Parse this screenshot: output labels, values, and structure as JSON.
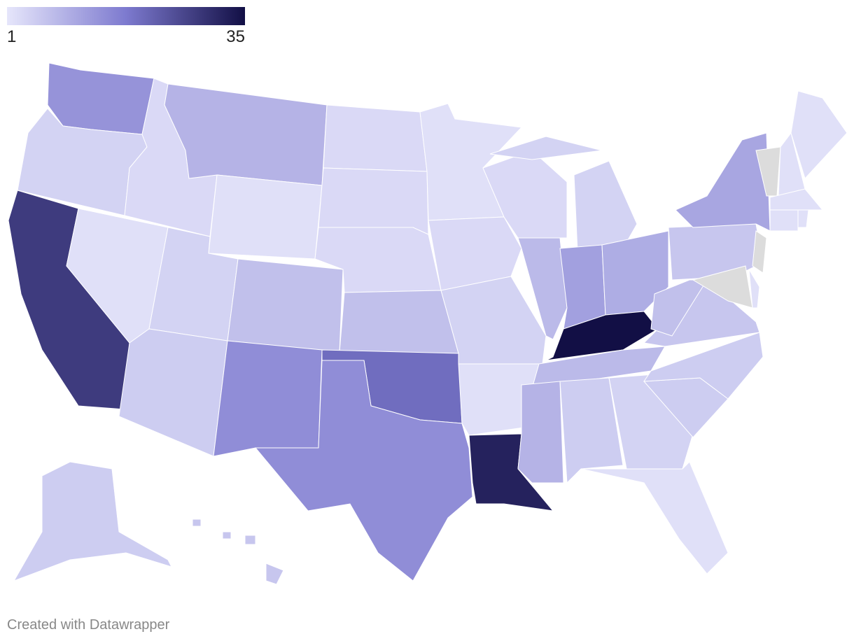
{
  "chart_data": {
    "type": "choropleth",
    "legend": {
      "ticks": [
        1,
        35
      ],
      "colors": [
        "#e6e6fb",
        "#7d7acf",
        "#120f45"
      ],
      "missing_color": "#dcdcdc"
    },
    "values": [
      14,
      4,
      28,
      2,
      3,
      9,
      2,
      4,
      5,
      7,
      15,
      3,
      3,
      3,
      7,
      20,
      15,
      2,
      3,
      4,
      2,
      32,
      3,
      8,
      4,
      12,
      10,
      35,
      8,
      9,
      5,
      4,
      2,
      5,
      5,
      6,
      7,
      6,
      11,
      null,
      2,
      null,
      null,
      2,
      2,
      2,
      2,
      2,
      5,
      6
    ],
    "footer": "Created with Datawrapper"
  }
}
